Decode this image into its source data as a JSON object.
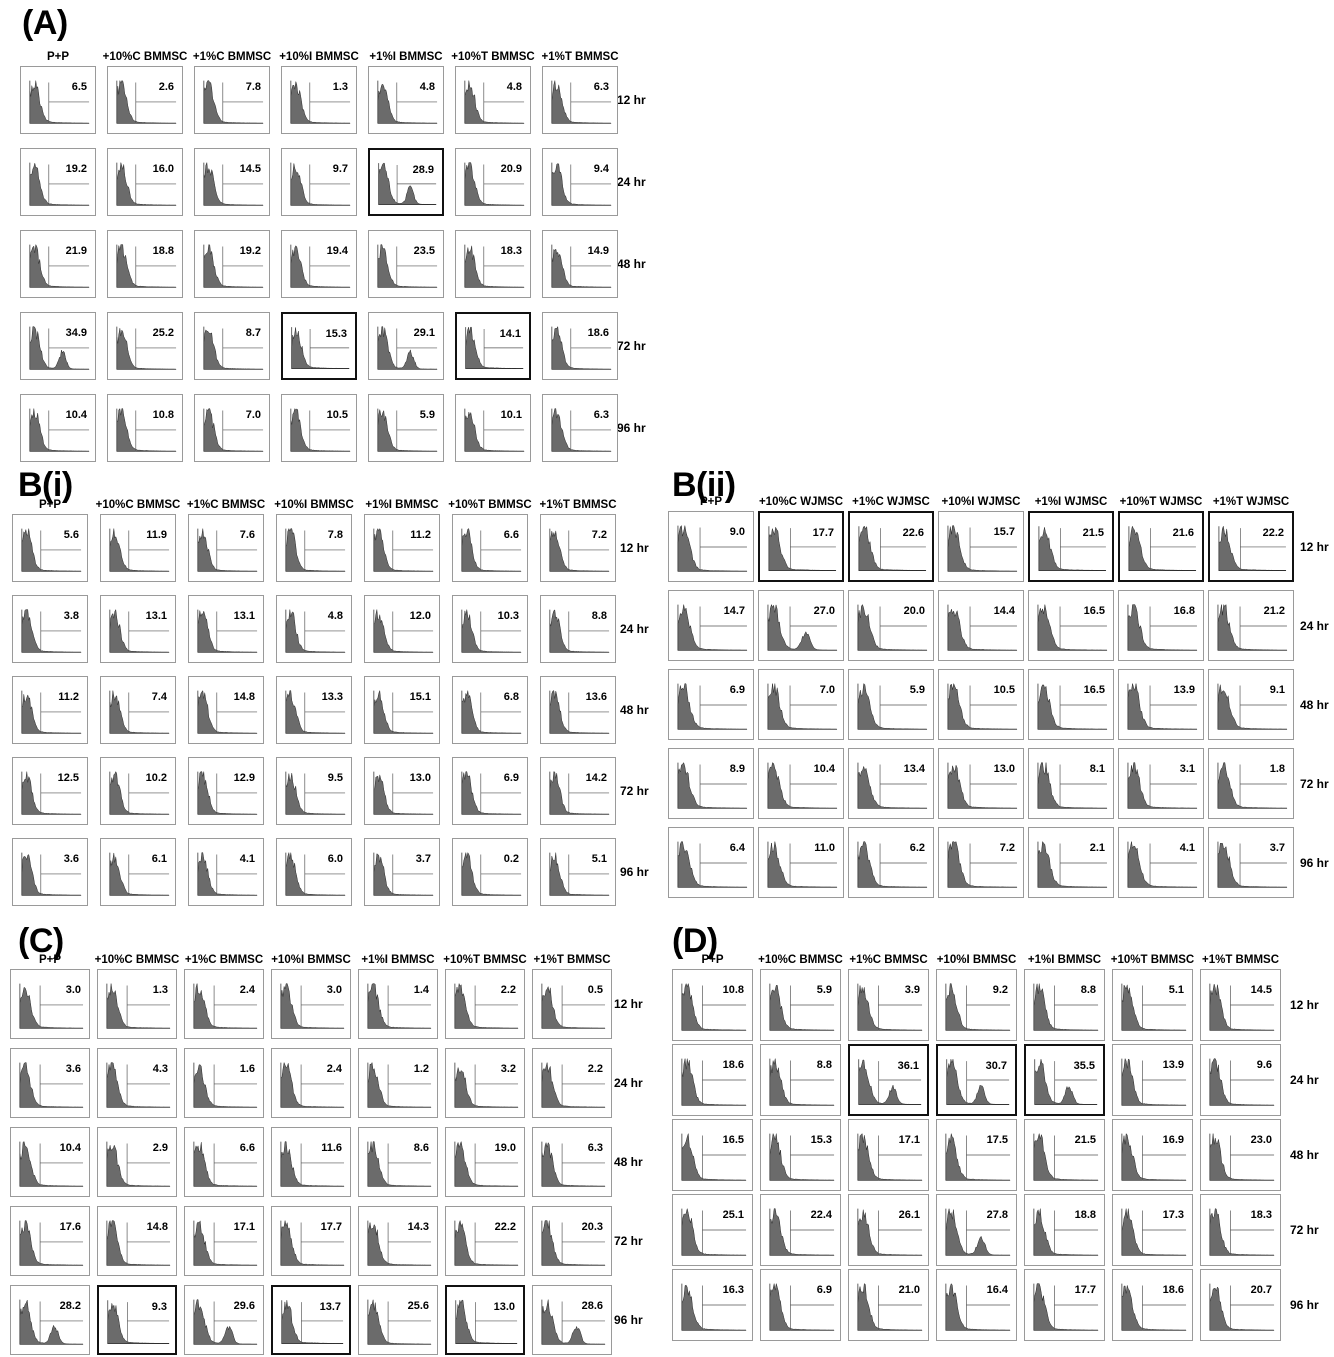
{
  "figure": {
    "panels": [
      {
        "id": "A",
        "title": "(A)",
        "columns": [
          "P+P",
          "+10%C BMMSC",
          "+1%C BMMSC",
          "+10%I BMMSC",
          "+1%I BMMSC",
          "+10%T BMMSC",
          "+1%T BMMSC"
        ],
        "rows": [
          "12 hr",
          "24 hr",
          "48 hr",
          "72 hr",
          "96 hr"
        ],
        "values": [
          [
            "6.5",
            "2.6",
            "7.8",
            "1.3",
            "4.8",
            "4.8",
            "6.3"
          ],
          [
            "19.2",
            "16.0",
            "14.5",
            "9.7",
            "28.9",
            "20.9",
            "9.4"
          ],
          [
            "21.9",
            "18.8",
            "19.2",
            "19.4",
            "23.5",
            "18.3",
            "14.9"
          ],
          [
            "34.9",
            "25.2",
            "8.7",
            "15.3",
            "29.1",
            "14.1",
            "18.6"
          ],
          [
            "10.4",
            "10.8",
            "7.0",
            "10.5",
            "5.9",
            "10.1",
            "6.3"
          ]
        ],
        "highlighted": [
          [
            1,
            4
          ],
          [
            3,
            3
          ],
          [
            3,
            5
          ]
        ]
      },
      {
        "id": "Bi",
        "title": "B(i)",
        "columns": [
          "P+P",
          "+10%C BMMSC",
          "+1%C BMMSC",
          "+10%I BMMSC",
          "+1%I BMMSC",
          "+10%T BMMSC",
          "+1%T BMMSC"
        ],
        "rows": [
          "12 hr",
          "24 hr",
          "48 hr",
          "72 hr",
          "96 hr"
        ],
        "values": [
          [
            "5.6",
            "11.9",
            "7.6",
            "7.8",
            "11.2",
            "6.6",
            "7.2"
          ],
          [
            "3.8",
            "13.1",
            "13.1",
            "4.8",
            "12.0",
            "10.3",
            "8.8"
          ],
          [
            "11.2",
            "7.4",
            "14.8",
            "13.3",
            "15.1",
            "6.8",
            "13.6"
          ],
          [
            "12.5",
            "10.2",
            "12.9",
            "9.5",
            "13.0",
            "6.9",
            "14.2"
          ],
          [
            "3.6",
            "6.1",
            "4.1",
            "6.0",
            "3.7",
            "0.2",
            "5.1"
          ]
        ],
        "highlighted": []
      },
      {
        "id": "Bii",
        "title": "B(ii)",
        "columns": [
          "P+P",
          "+10%C WJMSC",
          "+1%C WJMSC",
          "+10%I WJMSC",
          "+1%I WJMSC",
          "+10%T WJMSC",
          "+1%T WJMSC"
        ],
        "rows": [
          "12 hr",
          "24 hr",
          "48 hr",
          "72 hr",
          "96 hr"
        ],
        "values": [
          [
            "9.0",
            "17.7",
            "22.6",
            "15.7",
            "21.5",
            "21.6",
            "22.2"
          ],
          [
            "14.7",
            "27.0",
            "20.0",
            "14.4",
            "16.5",
            "16.8",
            "21.2"
          ],
          [
            "6.9",
            "7.0",
            "5.9",
            "10.5",
            "16.5",
            "13.9",
            "9.1"
          ],
          [
            "8.9",
            "10.4",
            "13.4",
            "13.0",
            "8.1",
            "3.1",
            "1.8"
          ],
          [
            "6.4",
            "11.0",
            "6.2",
            "7.2",
            "2.1",
            "4.1",
            "3.7"
          ]
        ],
        "highlighted": [
          [
            0,
            1
          ],
          [
            0,
            2
          ],
          [
            0,
            4
          ],
          [
            0,
            5
          ],
          [
            0,
            6
          ]
        ]
      },
      {
        "id": "C",
        "title": "(C)",
        "columns": [
          "P+P",
          "+10%C BMMSC",
          "+1%C BMMSC",
          "+10%I BMMSC",
          "+1%I BMMSC",
          "+10%T BMMSC",
          "+1%T BMMSC"
        ],
        "rows": [
          "12 hr",
          "24 hr",
          "48 hr",
          "72 hr",
          "96 hr"
        ],
        "values": [
          [
            "3.0",
            "1.3",
            "2.4",
            "3.0",
            "1.4",
            "2.2",
            "0.5"
          ],
          [
            "3.6",
            "4.3",
            "1.6",
            "2.4",
            "1.2",
            "3.2",
            "2.2"
          ],
          [
            "10.4",
            "2.9",
            "6.6",
            "11.6",
            "8.6",
            "19.0",
            "6.3"
          ],
          [
            "17.6",
            "14.8",
            "17.1",
            "17.7",
            "14.3",
            "22.2",
            "20.3"
          ],
          [
            "28.2",
            "9.3",
            "29.6",
            "13.7",
            "25.6",
            "13.0",
            "28.6"
          ]
        ],
        "highlighted": [
          [
            4,
            1
          ],
          [
            4,
            3
          ],
          [
            4,
            5
          ]
        ]
      },
      {
        "id": "D",
        "title": "(D)",
        "columns": [
          "P+P",
          "+10%C BMMSC",
          "+1%C BMMSC",
          "+10%I BMMSC",
          "+1%I BMMSC",
          "+10%T BMMSC",
          "+1%T BMMSC"
        ],
        "rows": [
          "12 hr",
          "24 hr",
          "48 hr",
          "72 hr",
          "96 hr"
        ],
        "values": [
          [
            "10.8",
            "5.9",
            "3.9",
            "9.2",
            "8.8",
            "5.1",
            "14.5"
          ],
          [
            "18.6",
            "8.8",
            "36.1",
            "30.7",
            "35.5",
            "13.9",
            "9.6"
          ],
          [
            "16.5",
            "15.3",
            "17.1",
            "17.5",
            "21.5",
            "16.9",
            "23.0"
          ],
          [
            "25.1",
            "22.4",
            "26.1",
            "27.8",
            "18.8",
            "17.3",
            "18.3"
          ],
          [
            "16.3",
            "6.9",
            "21.0",
            "16.4",
            "17.7",
            "18.6",
            "20.7"
          ]
        ],
        "highlighted": [
          [
            1,
            2
          ],
          [
            1,
            3
          ],
          [
            1,
            4
          ]
        ]
      }
    ]
  }
}
